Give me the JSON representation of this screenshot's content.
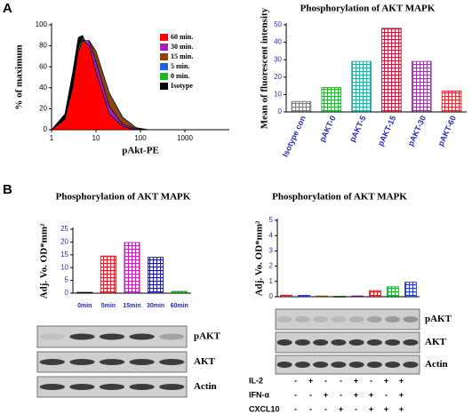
{
  "panels": [
    "A",
    "B"
  ],
  "chart_data": [
    {
      "type": "density",
      "xlabel": "pAkt-PE",
      "ylabel": "% of maximum",
      "xscale": "log",
      "xlim": [
        1,
        10000
      ],
      "xticks": [
        1,
        10,
        100,
        1000
      ],
      "ylim": [
        0,
        100
      ],
      "yticks": [
        0,
        20,
        40,
        60,
        80,
        100
      ],
      "legend": "upper right",
      "series": [
        {
          "name": "60 min.",
          "color": "#ff0000",
          "x": [
            1,
            2,
            3,
            4,
            5,
            7,
            10,
            20,
            40,
            80,
            150
          ],
          "values": [
            0,
            10,
            40,
            75,
            85,
            80,
            55,
            15,
            3,
            0,
            0
          ]
        },
        {
          "name": "30 min.",
          "color": "#a020c0",
          "x": [
            1,
            2,
            3,
            4,
            5,
            7,
            10,
            20,
            40,
            80,
            150
          ],
          "values": [
            0,
            8,
            35,
            70,
            85,
            85,
            65,
            22,
            5,
            1,
            0
          ]
        },
        {
          "name": "15 min.",
          "color": "#8b4513",
          "x": [
            1,
            2,
            3,
            4,
            5,
            7,
            10,
            20,
            40,
            80,
            150
          ],
          "values": [
            0,
            6,
            30,
            65,
            80,
            85,
            75,
            35,
            12,
            2,
            0
          ]
        },
        {
          "name": "5 min.",
          "color": "#1e64dc",
          "x": [
            1,
            2,
            3,
            4,
            5,
            7,
            10,
            20,
            40,
            80,
            150
          ],
          "values": [
            0,
            8,
            35,
            72,
            86,
            82,
            60,
            18,
            4,
            0,
            0
          ]
        },
        {
          "name": "0 min.",
          "color": "#22b422",
          "x": [
            1,
            2,
            3,
            4,
            5,
            7,
            10,
            20,
            40,
            80,
            150
          ],
          "values": [
            0,
            10,
            42,
            78,
            88,
            80,
            55,
            14,
            2,
            0,
            0
          ]
        },
        {
          "name": "Isotype",
          "color": "#000000",
          "x": [
            1,
            2,
            3,
            4,
            5,
            7,
            10,
            20,
            40,
            80,
            150
          ],
          "values": [
            0,
            15,
            55,
            88,
            90,
            75,
            45,
            10,
            2,
            0,
            0
          ]
        }
      ]
    },
    {
      "type": "bar",
      "title": "Phosphorylation of AKT MAPK",
      "ylabel": "Mean of fluorescent intensity",
      "categories": [
        "Isotype con",
        "pAKT-0",
        "pAKT-5",
        "pAKT-15",
        "pAKT-30",
        "pAKT-60"
      ],
      "values": [
        6,
        14,
        29,
        48,
        29,
        12
      ],
      "colors": [
        "#808080",
        "#33b033",
        "#2aa8a8",
        "#c0203a",
        "#9b3aa8",
        "#e03030"
      ],
      "ylim": [
        0,
        50
      ],
      "yticks": [
        0,
        10,
        20,
        30,
        40,
        50
      ]
    },
    {
      "type": "bar",
      "title": "Phosphorylation of AKT MAPK",
      "ylabel": "Adj. Vo. OD*mm²",
      "categories": [
        "0min",
        "5min",
        "15min",
        "30min",
        "60min"
      ],
      "values": [
        0.3,
        14.5,
        19.8,
        14,
        0.7
      ],
      "colors": [
        "#000000",
        "#e02020",
        "#c020c0",
        "#1a1aa0",
        "#20b020"
      ],
      "ylim": [
        0,
        25
      ],
      "yticks": [
        0,
        5,
        10,
        15,
        20,
        25
      ]
    },
    {
      "type": "bar",
      "title": "Phosphorylation of AKT MAPK",
      "ylabel": "Adj. Vo. OD*mm²",
      "categories": [
        null,
        null,
        null,
        null,
        null,
        null,
        null,
        null
      ],
      "values": [
        0.1,
        0.08,
        0.05,
        0.03,
        0.05,
        0.4,
        0.65,
        0.95
      ],
      "colors": [
        "#e02020",
        "#2020c0",
        "#e08020",
        "#20a020",
        "#a020a0",
        "#e02020",
        "#20b020",
        "#2040d0"
      ],
      "ylim": [
        0,
        5
      ],
      "yticks": [
        0,
        1,
        2,
        3,
        4,
        5
      ]
    }
  ],
  "blots": [
    {
      "rows": [
        "pAKT",
        "AKT",
        "Actin"
      ]
    },
    {
      "rows": [
        "pAKT",
        "AKT",
        "Actin"
      ]
    }
  ],
  "treatments": [
    {
      "name": "IL-2",
      "signs": [
        "-",
        "+",
        "-",
        "-",
        "+",
        "-",
        "+",
        "+"
      ]
    },
    {
      "name": "IFN-α",
      "signs": [
        "-",
        "-",
        "+",
        "-",
        "+",
        "+",
        "-",
        "+"
      ]
    },
    {
      "name": "CXCL10",
      "signs": [
        "-",
        "-",
        "-",
        "+",
        "-",
        "+",
        "+",
        "+"
      ]
    }
  ]
}
